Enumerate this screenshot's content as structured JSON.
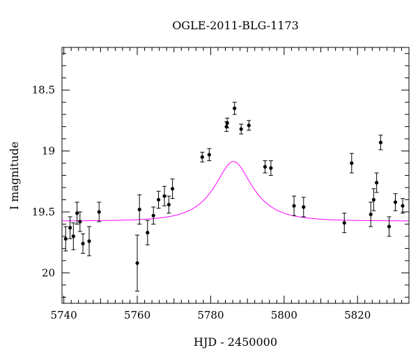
{
  "chart_data": {
    "type": "scatter",
    "title": "OGLE-2011-BLG-1173",
    "xlabel": "HJD - 2450000",
    "ylabel": "I magnitude",
    "xlim": [
      5739.5,
      5834
    ],
    "ylim": [
      20.25,
      18.15
    ],
    "x_ticks": [
      5740,
      5760,
      5780,
      5800,
      5820
    ],
    "y_ticks": [
      18.5,
      19,
      19.5,
      20
    ],
    "x_tick_labels": [
      "5740",
      "5760",
      "5780",
      "5800",
      "5820"
    ],
    "y_tick_labels": [
      "18.5",
      "19",
      "19.5",
      "20"
    ],
    "y_inverted": true,
    "grid": false,
    "colors": {
      "points": "#000000",
      "model": "#ff00ff",
      "frame": "#000000"
    },
    "series": [
      {
        "type": "scatter_errorbars",
        "points": [
          {
            "x": 5740.5,
            "y": 19.72,
            "err": 0.1
          },
          {
            "x": 5741.7,
            "y": 19.63,
            "err": 0.09
          },
          {
            "x": 5742.6,
            "y": 19.7,
            "err": 0.11
          },
          {
            "x": 5743.6,
            "y": 19.51,
            "err": 0.09
          },
          {
            "x": 5744.4,
            "y": 19.58,
            "err": 0.08
          },
          {
            "x": 5745.2,
            "y": 19.76,
            "err": 0.08
          },
          {
            "x": 5746.9,
            "y": 19.74,
            "err": 0.12
          },
          {
            "x": 5749.6,
            "y": 19.5,
            "err": 0.08
          },
          {
            "x": 5760.0,
            "y": 19.92,
            "err": 0.23
          },
          {
            "x": 5760.6,
            "y": 19.48,
            "err": 0.12
          },
          {
            "x": 5762.8,
            "y": 19.67,
            "err": 0.1
          },
          {
            "x": 5764.4,
            "y": 19.53,
            "err": 0.07
          },
          {
            "x": 5765.8,
            "y": 19.4,
            "err": 0.07
          },
          {
            "x": 5767.4,
            "y": 19.37,
            "err": 0.08
          },
          {
            "x": 5768.6,
            "y": 19.44,
            "err": 0.07
          },
          {
            "x": 5769.6,
            "y": 19.31,
            "err": 0.08
          },
          {
            "x": 5777.7,
            "y": 19.05,
            "err": 0.04
          },
          {
            "x": 5779.6,
            "y": 19.03,
            "err": 0.05
          },
          {
            "x": 5784.3,
            "y": 18.8,
            "err": 0.04
          },
          {
            "x": 5784.5,
            "y": 18.77,
            "err": 0.04
          },
          {
            "x": 5786.5,
            "y": 18.65,
            "err": 0.05
          },
          {
            "x": 5788.3,
            "y": 18.82,
            "err": 0.04
          },
          {
            "x": 5790.4,
            "y": 18.79,
            "err": 0.04
          },
          {
            "x": 5794.8,
            "y": 19.13,
            "err": 0.05
          },
          {
            "x": 5796.4,
            "y": 19.14,
            "err": 0.06
          },
          {
            "x": 5802.7,
            "y": 19.45,
            "err": 0.08
          },
          {
            "x": 5805.3,
            "y": 19.46,
            "err": 0.08
          },
          {
            "x": 5816.4,
            "y": 19.59,
            "err": 0.08
          },
          {
            "x": 5818.4,
            "y": 19.1,
            "err": 0.08
          },
          {
            "x": 5823.6,
            "y": 19.52,
            "err": 0.1
          },
          {
            "x": 5824.4,
            "y": 19.4,
            "err": 0.09
          },
          {
            "x": 5825.2,
            "y": 19.26,
            "err": 0.08
          },
          {
            "x": 5826.3,
            "y": 18.93,
            "err": 0.06
          },
          {
            "x": 5828.6,
            "y": 19.62,
            "err": 0.08
          },
          {
            "x": 5830.3,
            "y": 19.42,
            "err": 0.07
          },
          {
            "x": 5832.3,
            "y": 19.45,
            "err": 0.06
          }
        ]
      },
      {
        "type": "model_curve",
        "model": {
          "baseline": 19.575,
          "t0": 5786.2,
          "tE": 9.6,
          "u0": 0.5,
          "fs": 0.48
        }
      }
    ]
  }
}
